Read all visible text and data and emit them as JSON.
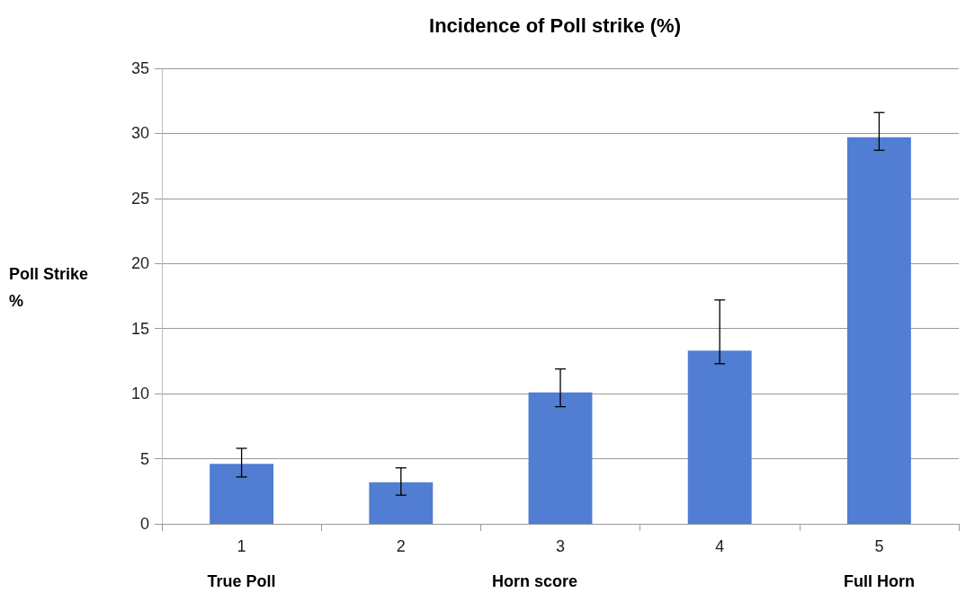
{
  "chart_data": {
    "type": "bar",
    "title": "Incidence of Poll strike (%)",
    "xlabel": "Horn score",
    "ylabel": "Poll Strike %",
    "categories": [
      "1",
      "2",
      "3",
      "4",
      "5"
    ],
    "values": [
      4.6,
      3.2,
      10.1,
      13.3,
      29.7
    ],
    "errors": [
      [
        3.6,
        5.8
      ],
      [
        2.2,
        4.3
      ],
      [
        9.0,
        11.9
      ],
      [
        12.3,
        17.2
      ],
      [
        28.7,
        31.6
      ]
    ],
    "color": "#517dd2",
    "ylim": [
      0,
      35
    ],
    "yticks": [
      0,
      5,
      10,
      15,
      20,
      25,
      30,
      35
    ],
    "grid": "y",
    "annotations": [
      "True Poll",
      "Full Horn"
    ]
  }
}
